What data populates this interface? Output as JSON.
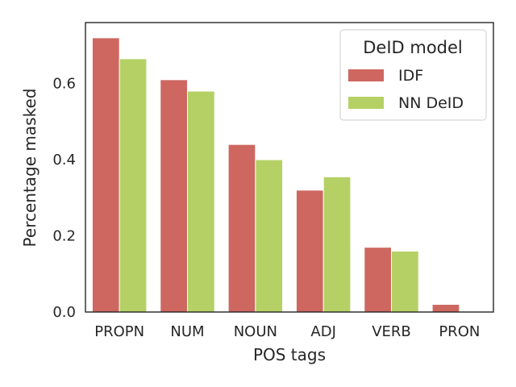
{
  "chart_data": {
    "type": "bar",
    "xlabel": "POS tags",
    "ylabel": "Percentage masked",
    "categories": [
      "PROPN",
      "NUM",
      "NOUN",
      "ADJ",
      "VERB",
      "PRON"
    ],
    "series": [
      {
        "name": "IDF",
        "color": "#cd6760",
        "values": [
          0.72,
          0.61,
          0.44,
          0.32,
          0.17,
          0.02
        ]
      },
      {
        "name": "NN DeID",
        "color": "#b5d166",
        "values": [
          0.665,
          0.58,
          0.4,
          0.355,
          0.16,
          0.0
        ]
      }
    ],
    "ylim": [
      0,
      0.76
    ],
    "yticks": [
      "0.0",
      "0.2",
      "0.4",
      "0.6"
    ],
    "legend": {
      "title": "DeID model",
      "position": "top-right"
    },
    "grid": false
  }
}
